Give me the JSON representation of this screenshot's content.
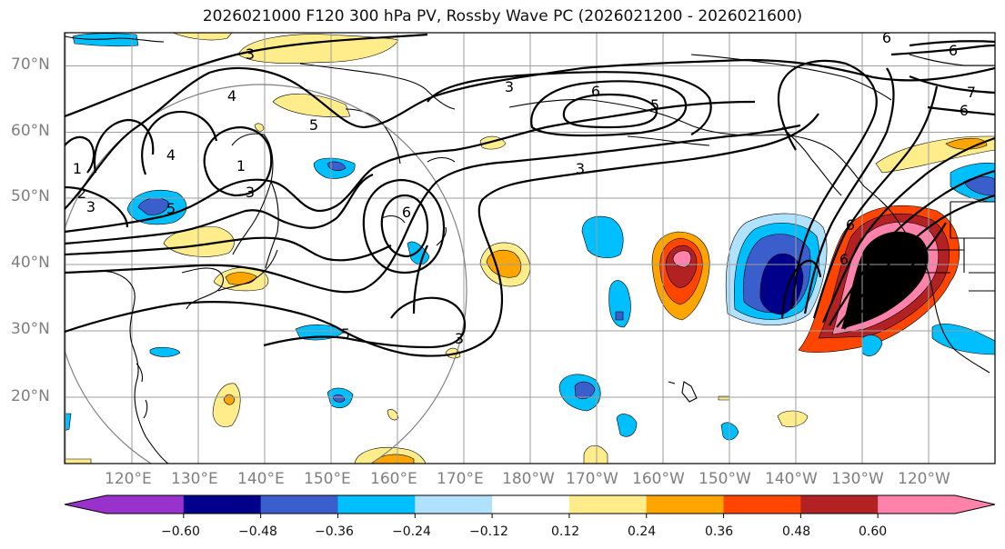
{
  "title": "2026021000 F120 300 hPa PV, Rossby Wave PC (2026021200 - 2026021600)",
  "lat_labels": [
    "70°N",
    "60°N",
    "50°N",
    "40°N",
    "30°N",
    "20°N"
  ],
  "lon_labels": [
    "120°E",
    "130°E",
    "140°E",
    "150°E",
    "160°E",
    "170°E",
    "180°W",
    "170°W",
    "160°W",
    "150°W",
    "140°W",
    "130°W",
    "120°W"
  ],
  "contour_labels": [
    "3",
    "4",
    "5",
    "6",
    "3",
    "1",
    "2",
    "3",
    "5",
    "4",
    "3",
    "6",
    "3",
    "5",
    "6",
    "6",
    "6",
    "7",
    "6",
    "3",
    "5",
    "6",
    "1"
  ],
  "colorbar": {
    "tick_labels": [
      "−0.60",
      "−0.48",
      "−0.36",
      "−0.24",
      "−0.12",
      "0.12",
      "0.24",
      "0.36",
      "0.48",
      "0.60"
    ],
    "colors": [
      "#9932cc",
      "#00008b",
      "#3a5fcd",
      "#00bfff",
      "#b0e2ff",
      "#ffffff",
      "#ffec8b",
      "#ffa500",
      "#ff4500",
      "#b22222",
      "#ff82ab"
    ]
  }
}
